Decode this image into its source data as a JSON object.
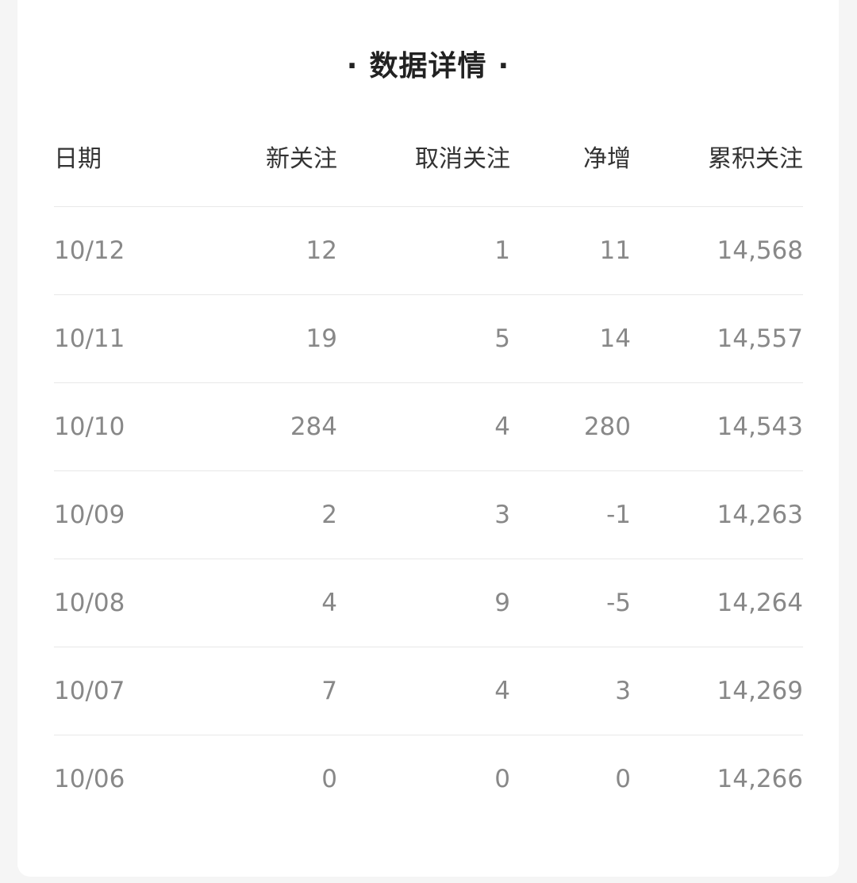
{
  "title": "数据详情",
  "title_dot": "·",
  "table": {
    "columns": [
      "日期",
      "新关注",
      "取消关注",
      "净增",
      "累积关注"
    ],
    "rows": [
      [
        "10/12",
        "12",
        "1",
        "11",
        "14,568"
      ],
      [
        "10/11",
        "19",
        "5",
        "14",
        "14,557"
      ],
      [
        "10/10",
        "284",
        "4",
        "280",
        "14,543"
      ],
      [
        "10/09",
        "2",
        "3",
        "-1",
        "14,263"
      ],
      [
        "10/08",
        "4",
        "9",
        "-5",
        "14,264"
      ],
      [
        "10/07",
        "7",
        "4",
        "3",
        "14,269"
      ],
      [
        "10/06",
        "0",
        "0",
        "0",
        "14,266"
      ]
    ]
  }
}
